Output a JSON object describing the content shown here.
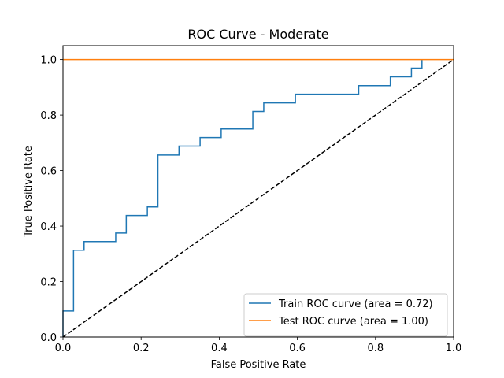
{
  "chart_data": {
    "type": "line",
    "title": "ROC Curve - Moderate",
    "xlabel": "False Positive Rate",
    "ylabel": "True Positive Rate",
    "xlim": [
      0.0,
      1.0
    ],
    "ylim": [
      0.0,
      1.05
    ],
    "xticks": [
      "0.0",
      "0.2",
      "0.4",
      "0.6",
      "0.8",
      "1.0"
    ],
    "yticks": [
      "0.0",
      "0.2",
      "0.4",
      "0.6",
      "0.8",
      "1.0"
    ],
    "grid": false,
    "legend_position": "lower-right",
    "series": [
      {
        "name": "Train ROC curve (area = 0.72)",
        "color": "#1f77b4",
        "x": [
          0.0,
          0.0,
          0.027,
          0.027,
          0.054,
          0.054,
          0.135,
          0.135,
          0.162,
          0.162,
          0.216,
          0.216,
          0.243,
          0.243,
          0.297,
          0.297,
          0.351,
          0.351,
          0.405,
          0.405,
          0.486,
          0.486,
          0.514,
          0.514,
          0.595,
          0.595,
          0.757,
          0.757,
          0.838,
          0.838,
          0.892,
          0.892,
          0.919,
          0.919
        ],
        "y": [
          0.0,
          0.094,
          0.094,
          0.313,
          0.313,
          0.344,
          0.344,
          0.375,
          0.375,
          0.438,
          0.438,
          0.469,
          0.469,
          0.656,
          0.656,
          0.688,
          0.688,
          0.719,
          0.719,
          0.75,
          0.75,
          0.813,
          0.813,
          0.844,
          0.844,
          0.875,
          0.875,
          0.906,
          0.906,
          0.938,
          0.938,
          0.969,
          0.969,
          1.0
        ]
      },
      {
        "name": "Test ROC curve (area = 1.00)",
        "color": "#ff7f0e",
        "x": [
          0.0,
          1.0
        ],
        "y": [
          1.0,
          1.0
        ]
      },
      {
        "name": "",
        "color": "#000000",
        "dashed": true,
        "x": [
          0.0,
          1.0
        ],
        "y": [
          0.0,
          1.0
        ]
      }
    ]
  }
}
